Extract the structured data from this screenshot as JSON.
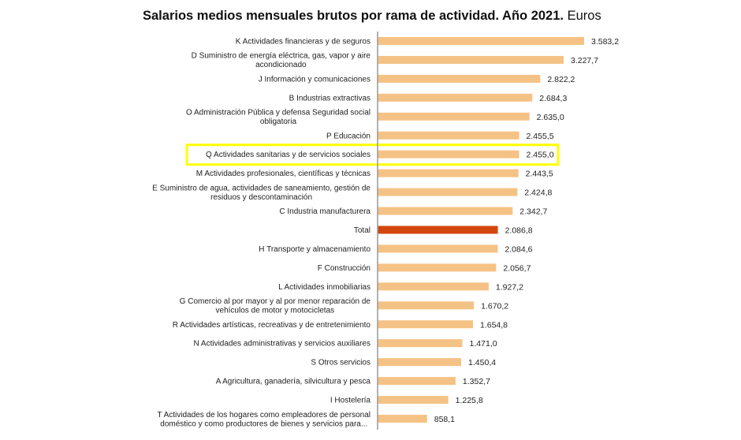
{
  "chart_data": {
    "type": "bar",
    "orientation": "horizontal",
    "title": "Salarios medios mensuales brutos por rama de actividad. Año 2021.",
    "title_unit": "Euros",
    "colors": {
      "bar": "#f5c285",
      "total": "#d2470e",
      "highlight": "#ffff00"
    },
    "highlighted_category": "Q  Actividades sanitarias y de servicios sociales",
    "grid": false,
    "xlim": [
      0,
      3600
    ],
    "categories": [
      [
        "K  Actividades financieras y de seguros"
      ],
      [
        "D  Suministro de energía eléctrica, gas, vapor y aire",
        "acondicionado"
      ],
      [
        "J  Información y comunicaciones"
      ],
      [
        "B  Industrias extractivas"
      ],
      [
        "O  Administración Pública y defensa Seguridad social",
        "obligatoria"
      ],
      [
        "P  Educación"
      ],
      [
        "Q  Actividades sanitarias y de servicios sociales"
      ],
      [
        "M  Actividades profesionales, científicas y técnicas"
      ],
      [
        "E  Suministro de agua, actividades de saneamiento, gestión de",
        "residuos y descontaminación"
      ],
      [
        "C  Industria manufacturera"
      ],
      [
        "Total"
      ],
      [
        "H  Transporte y almacenamiento"
      ],
      [
        "F  Construcción"
      ],
      [
        "L  Actividades inmobiliarias"
      ],
      [
        "G  Comercio al por mayor y al por menor reparación de",
        "vehículos de motor y motocicletas"
      ],
      [
        "R  Actividades artísticas, recreativas y de entretenimiento"
      ],
      [
        "N  Actividades administrativas y servicios auxiliares"
      ],
      [
        "S  Otros servicios"
      ],
      [
        "A  Agricultura, ganadería, silvicultura y pesca"
      ],
      [
        "I  Hostelería"
      ],
      [
        "T  Actividades de los hogares como empleadores de personal",
        "doméstico y como productores de bienes y servicios para..."
      ]
    ],
    "values": [
      3583.2,
      3227.7,
      2822.2,
      2684.3,
      2635.0,
      2455.5,
      2455.0,
      2443.5,
      2424.8,
      2342.7,
      2086.8,
      2084.6,
      2056.7,
      1927.2,
      1670.2,
      1654.8,
      1471.0,
      1450.4,
      1352.7,
      1225.8,
      858.1
    ],
    "value_labels": [
      "3.583,2",
      "3.227,7",
      "2.822,2",
      "2.684,3",
      "2.635,0",
      "2.455,5",
      "2.455,0",
      "2.443,5",
      "2.424,8",
      "2.342,7",
      "2.086,8",
      "2.084,6",
      "2.056,7",
      "1.927,2",
      "1.670,2",
      "1.654,8",
      "1.471,0",
      "1.450,4",
      "1.352,7",
      "1.225,8",
      "858,1"
    ]
  }
}
